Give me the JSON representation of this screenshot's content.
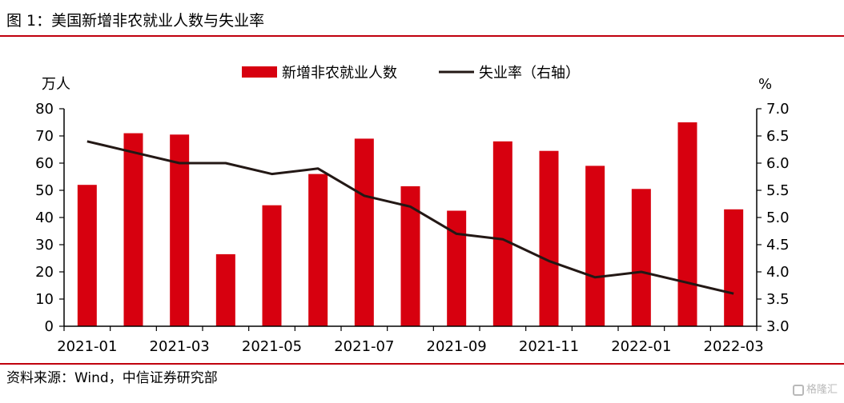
{
  "header": {
    "title": "图 1：美国新增非农就业人数与失业率"
  },
  "footer": {
    "source": "资料来源：Wind，中信证券研究部",
    "watermark": "格隆汇"
  },
  "colors": {
    "bar": "#d7000f",
    "line": "#231815",
    "rule": "#c0000d"
  },
  "chart_data": {
    "type": "bar",
    "categories": [
      "2021-01",
      "2021-02",
      "2021-03",
      "2021-04",
      "2021-05",
      "2021-06",
      "2021-07",
      "2021-08",
      "2021-09",
      "2021-10",
      "2021-11",
      "2021-12",
      "2022-01",
      "2022-02",
      "2022-03"
    ],
    "x_tick_labels": [
      "2021-01",
      "2021-03",
      "2021-05",
      "2021-07",
      "2021-09",
      "2021-11",
      "2022-01",
      "2022-03"
    ],
    "series": [
      {
        "name": "新增非农就业人数",
        "type": "bar",
        "axis": "left",
        "values": [
          52,
          71,
          70.5,
          26.5,
          44.5,
          56,
          69,
          51.5,
          42.5,
          68,
          64.5,
          59,
          50.5,
          75,
          43
        ]
      },
      {
        "name": "失业率（右轴）",
        "type": "line",
        "axis": "right",
        "values": [
          6.4,
          6.2,
          6.0,
          6.0,
          5.8,
          5.9,
          5.4,
          5.2,
          4.7,
          4.6,
          4.2,
          3.9,
          4.0,
          3.8,
          3.6
        ]
      }
    ],
    "y_left": {
      "unit": "万人",
      "ylim": [
        0,
        80
      ],
      "ticks": [
        "0",
        "10",
        "20",
        "30",
        "40",
        "50",
        "60",
        "70",
        "80"
      ]
    },
    "y_right": {
      "unit": "%",
      "ylim": [
        3.0,
        7.0
      ],
      "ticks": [
        "3.0",
        "3.5",
        "4.0",
        "4.5",
        "5.0",
        "5.5",
        "6.0",
        "6.5",
        "7.0"
      ]
    },
    "legend_position": "top-center",
    "grid": false
  }
}
